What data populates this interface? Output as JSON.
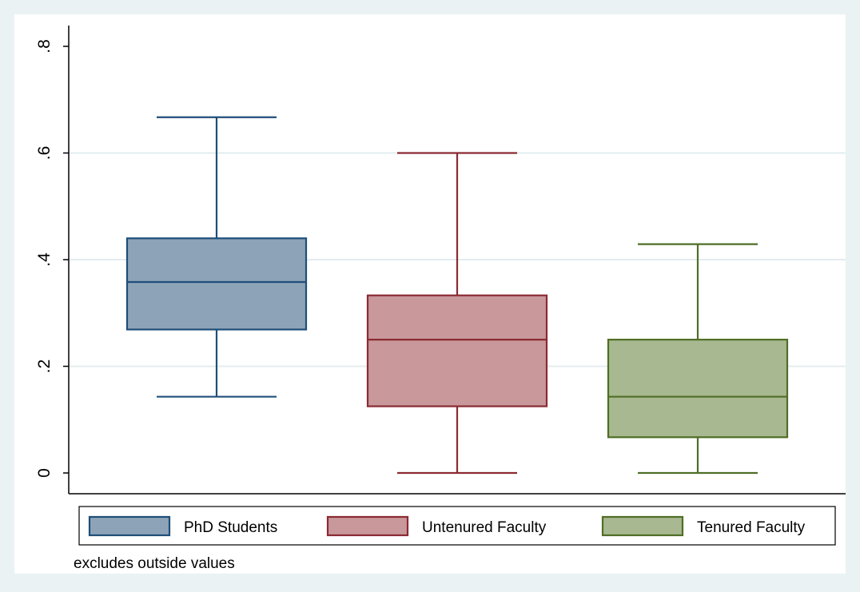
{
  "chart_data": {
    "type": "box",
    "ylim": [
      0,
      0.8
    ],
    "yticks": [
      {
        "value": 0,
        "label": "0"
      },
      {
        "value": 0.2,
        "label": ".2"
      },
      {
        "value": 0.4,
        "label": ".4"
      },
      {
        "value": 0.6,
        "label": ".6"
      },
      {
        "value": 0.8,
        "label": ".8"
      }
    ],
    "grid": true,
    "legend_position": "bottom",
    "series": [
      {
        "name": "PhD Students",
        "min": 0.143,
        "q1": 0.269,
        "median": 0.358,
        "q3": 0.44,
        "max": 0.667,
        "fill": "#8da4b8",
        "stroke": "#1f4e79"
      },
      {
        "name": "Untenured Faculty",
        "min": 0.0,
        "q1": 0.125,
        "median": 0.25,
        "q3": 0.333,
        "max": 0.6,
        "fill": "#c8989b",
        "stroke": "#8b2a33"
      },
      {
        "name": "Tenured Faculty",
        "min": 0.0,
        "q1": 0.067,
        "median": 0.143,
        "q3": 0.25,
        "max": 0.429,
        "fill": "#a8b890",
        "stroke": "#4f6e26"
      }
    ],
    "note": "excludes outside values"
  },
  "colors": {
    "background": "#eaf2f3",
    "plot_background": "#ffffff",
    "grid": "#e3ecee"
  }
}
